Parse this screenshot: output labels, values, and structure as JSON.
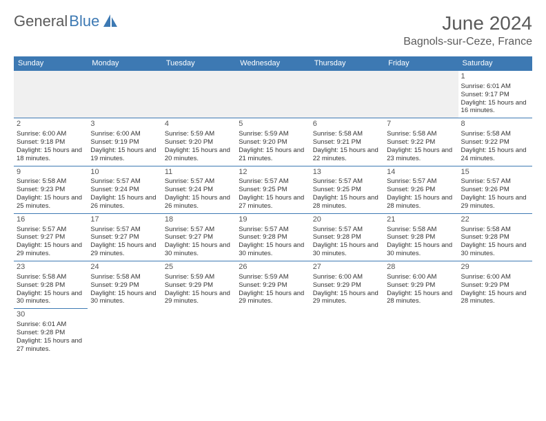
{
  "brand": {
    "name1": "General",
    "name2": "Blue"
  },
  "title": "June 2024",
  "location": "Bagnols-sur-Ceze, France",
  "colors": {
    "header_bg": "#3d79b3",
    "header_text": "#ffffff",
    "border": "#3d79b3",
    "text": "#333333",
    "title_color": "#5a5a5a"
  },
  "days_of_week": [
    "Sunday",
    "Monday",
    "Tuesday",
    "Wednesday",
    "Thursday",
    "Friday",
    "Saturday"
  ],
  "days": {
    "1": {
      "sunrise": "6:01 AM",
      "sunset": "9:17 PM",
      "daylight": "15 hours and 16 minutes."
    },
    "2": {
      "sunrise": "6:00 AM",
      "sunset": "9:18 PM",
      "daylight": "15 hours and 18 minutes."
    },
    "3": {
      "sunrise": "6:00 AM",
      "sunset": "9:19 PM",
      "daylight": "15 hours and 19 minutes."
    },
    "4": {
      "sunrise": "5:59 AM",
      "sunset": "9:20 PM",
      "daylight": "15 hours and 20 minutes."
    },
    "5": {
      "sunrise": "5:59 AM",
      "sunset": "9:20 PM",
      "daylight": "15 hours and 21 minutes."
    },
    "6": {
      "sunrise": "5:58 AM",
      "sunset": "9:21 PM",
      "daylight": "15 hours and 22 minutes."
    },
    "7": {
      "sunrise": "5:58 AM",
      "sunset": "9:22 PM",
      "daylight": "15 hours and 23 minutes."
    },
    "8": {
      "sunrise": "5:58 AM",
      "sunset": "9:22 PM",
      "daylight": "15 hours and 24 minutes."
    },
    "9": {
      "sunrise": "5:58 AM",
      "sunset": "9:23 PM",
      "daylight": "15 hours and 25 minutes."
    },
    "10": {
      "sunrise": "5:57 AM",
      "sunset": "9:24 PM",
      "daylight": "15 hours and 26 minutes."
    },
    "11": {
      "sunrise": "5:57 AM",
      "sunset": "9:24 PM",
      "daylight": "15 hours and 26 minutes."
    },
    "12": {
      "sunrise": "5:57 AM",
      "sunset": "9:25 PM",
      "daylight": "15 hours and 27 minutes."
    },
    "13": {
      "sunrise": "5:57 AM",
      "sunset": "9:25 PM",
      "daylight": "15 hours and 28 minutes."
    },
    "14": {
      "sunrise": "5:57 AM",
      "sunset": "9:26 PM",
      "daylight": "15 hours and 28 minutes."
    },
    "15": {
      "sunrise": "5:57 AM",
      "sunset": "9:26 PM",
      "daylight": "15 hours and 29 minutes."
    },
    "16": {
      "sunrise": "5:57 AM",
      "sunset": "9:27 PM",
      "daylight": "15 hours and 29 minutes."
    },
    "17": {
      "sunrise": "5:57 AM",
      "sunset": "9:27 PM",
      "daylight": "15 hours and 29 minutes."
    },
    "18": {
      "sunrise": "5:57 AM",
      "sunset": "9:27 PM",
      "daylight": "15 hours and 30 minutes."
    },
    "19": {
      "sunrise": "5:57 AM",
      "sunset": "9:28 PM",
      "daylight": "15 hours and 30 minutes."
    },
    "20": {
      "sunrise": "5:57 AM",
      "sunset": "9:28 PM",
      "daylight": "15 hours and 30 minutes."
    },
    "21": {
      "sunrise": "5:58 AM",
      "sunset": "9:28 PM",
      "daylight": "15 hours and 30 minutes."
    },
    "22": {
      "sunrise": "5:58 AM",
      "sunset": "9:28 PM",
      "daylight": "15 hours and 30 minutes."
    },
    "23": {
      "sunrise": "5:58 AM",
      "sunset": "9:28 PM",
      "daylight": "15 hours and 30 minutes."
    },
    "24": {
      "sunrise": "5:58 AM",
      "sunset": "9:29 PM",
      "daylight": "15 hours and 30 minutes."
    },
    "25": {
      "sunrise": "5:59 AM",
      "sunset": "9:29 PM",
      "daylight": "15 hours and 29 minutes."
    },
    "26": {
      "sunrise": "5:59 AM",
      "sunset": "9:29 PM",
      "daylight": "15 hours and 29 minutes."
    },
    "27": {
      "sunrise": "6:00 AM",
      "sunset": "9:29 PM",
      "daylight": "15 hours and 29 minutes."
    },
    "28": {
      "sunrise": "6:00 AM",
      "sunset": "9:29 PM",
      "daylight": "15 hours and 28 minutes."
    },
    "29": {
      "sunrise": "6:00 AM",
      "sunset": "9:29 PM",
      "daylight": "15 hours and 28 minutes."
    },
    "30": {
      "sunrise": "6:01 AM",
      "sunset": "9:28 PM",
      "daylight": "15 hours and 27 minutes."
    }
  },
  "layout": {
    "first_day_column": 6,
    "num_days": 30,
    "labels": {
      "sunrise": "Sunrise:",
      "sunset": "Sunset:",
      "daylight": "Daylight:"
    }
  }
}
